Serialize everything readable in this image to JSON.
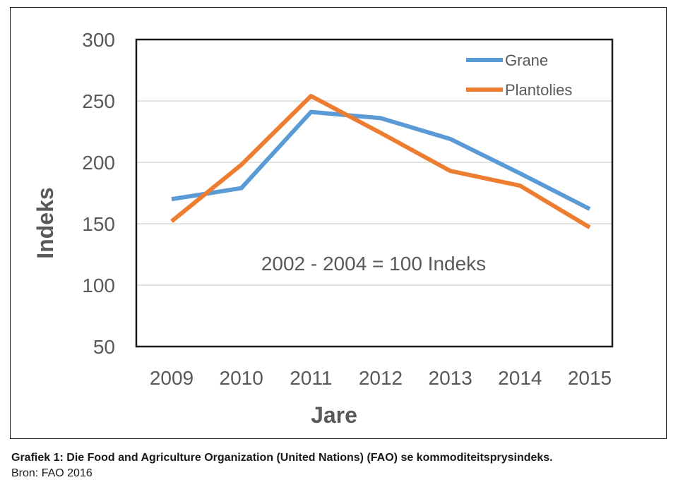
{
  "chart_data": {
    "type": "line",
    "x": [
      "2009",
      "2010",
      "2011",
      "2012",
      "2013",
      "2014",
      "2015"
    ],
    "yticks": [
      "300",
      "250",
      "200",
      "150",
      "100",
      "50"
    ],
    "ylim": [
      50,
      300
    ],
    "ylabel": "Indeks",
    "xlabel": "Jare",
    "annotation": "2002 - 2004 = 100 Indeks",
    "grid": true,
    "legend_position": "top-right",
    "series": [
      {
        "name": "Grane",
        "color": "#5B9BD5",
        "values": [
          170,
          179,
          241,
          236,
          219,
          191,
          162
        ]
      },
      {
        "name": "Plantolies",
        "color": "#ED7D31",
        "values": [
          152,
          198,
          254,
          224,
          193,
          181,
          147
        ]
      }
    ]
  },
  "caption": {
    "title": "Grafiek 1: Die Food and Agriculture Organization (United Nations) (FAO) se kommoditeitsprysindeks.",
    "source": "Bron: FAO 2016"
  }
}
